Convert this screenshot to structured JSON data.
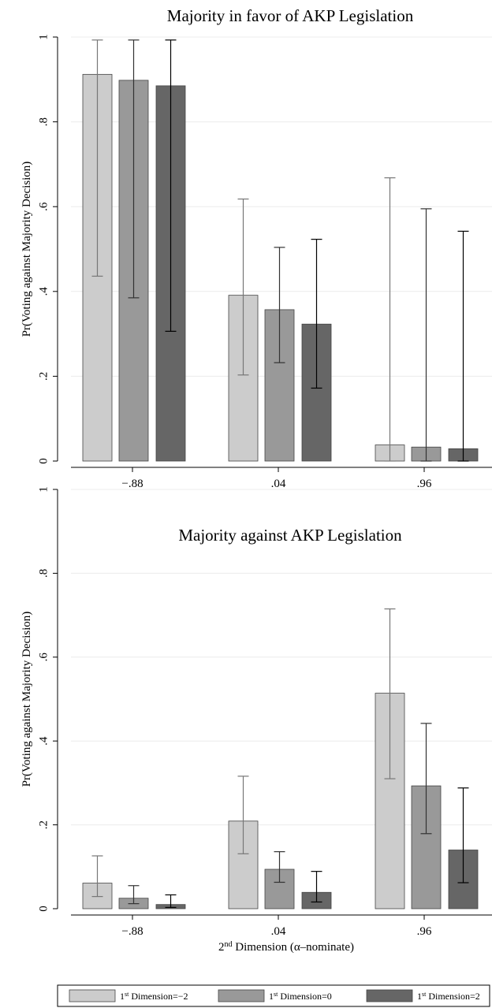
{
  "chart_data": [
    {
      "type": "bar",
      "title": "Majority in favor of AKP Legislation",
      "ylabel": "Pr(Voting against Majority Decision)",
      "xlabel": "",
      "ylim": [
        0,
        1
      ],
      "yticks": [
        0,
        0.2,
        0.4,
        0.6,
        0.8,
        1
      ],
      "ytick_labels": [
        "0",
        ".2",
        ".4",
        ".6",
        ".8",
        "1"
      ],
      "categories": [
        "-.88",
        ".04",
        ".96"
      ],
      "grid": true,
      "series": [
        {
          "name": "1st Dimension=-2",
          "color": "#cccccc",
          "values": [
            0.912,
            0.391,
            0.038
          ],
          "ci_low": [
            0.436,
            0.203,
            0.0
          ],
          "ci_high": [
            0.993,
            0.618,
            0.668
          ]
        },
        {
          "name": "1st Dimension=0",
          "color": "#999999",
          "values": [
            0.898,
            0.357,
            0.033
          ],
          "ci_low": [
            0.385,
            0.232,
            0.0
          ],
          "ci_high": [
            0.993,
            0.504,
            0.595
          ]
        },
        {
          "name": "1st Dimension=2",
          "color": "#666666",
          "values": [
            0.885,
            0.323,
            0.029
          ],
          "ci_low": [
            0.306,
            0.172,
            0.0
          ],
          "ci_high": [
            0.993,
            0.523,
            0.542
          ]
        }
      ]
    },
    {
      "type": "bar",
      "title": "Majority against AKP Legislation",
      "ylabel": "Pr(Voting against Majority Decision)",
      "xlabel": "2nd Dimension (α–nominate)",
      "xlabel_parts": {
        "lead": "2",
        "sup": "nd",
        "rest": " Dimension (α–nominate)"
      },
      "ylim": [
        0,
        1
      ],
      "yticks": [
        0,
        0.2,
        0.4,
        0.6,
        0.8,
        1
      ],
      "ytick_labels": [
        "0",
        ".2",
        ".4",
        ".6",
        ".8",
        "1"
      ],
      "categories": [
        "-.88",
        ".04",
        ".96"
      ],
      "grid": true,
      "series": [
        {
          "name": "1st Dimension=-2",
          "color": "#cccccc",
          "values": [
            0.061,
            0.209,
            0.514
          ],
          "ci_low": [
            0.029,
            0.131,
            0.31
          ],
          "ci_high": [
            0.126,
            0.316,
            0.715
          ]
        },
        {
          "name": "1st Dimension=0",
          "color": "#999999",
          "values": [
            0.025,
            0.094,
            0.293
          ],
          "ci_low": [
            0.012,
            0.063,
            0.179
          ],
          "ci_high": [
            0.055,
            0.136,
            0.442
          ]
        },
        {
          "name": "1st Dimension=2",
          "color": "#666666",
          "values": [
            0.01,
            0.039,
            0.14
          ],
          "ci_low": [
            0.003,
            0.016,
            0.062
          ],
          "ci_high": [
            0.033,
            0.089,
            0.288
          ]
        }
      ]
    }
  ],
  "legend": {
    "placement": "bottom",
    "items": [
      {
        "lead": "1",
        "sup": "st",
        "rest": " Dimension=−2",
        "color": "#cccccc"
      },
      {
        "lead": "1",
        "sup": "st",
        "rest": " Dimension=0",
        "color": "#999999"
      },
      {
        "lead": "1",
        "sup": "st",
        "rest": " Dimension=2",
        "color": "#666666"
      }
    ]
  }
}
